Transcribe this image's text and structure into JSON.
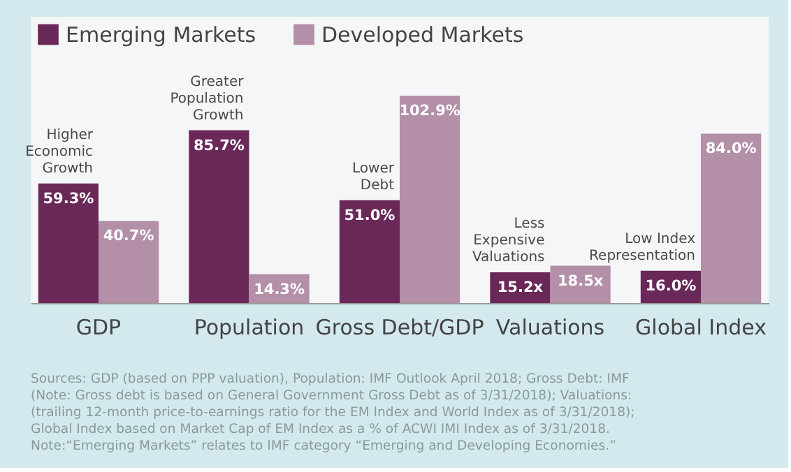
{
  "chart_data": {
    "type": "bar",
    "categories": [
      "GDP",
      "Population",
      "Gross Debt/GDP",
      "Valuations",
      "Global Index"
    ],
    "series": [
      {
        "name": "Emerging Markets",
        "color": "#6a2859",
        "values": [
          59.3,
          85.7,
          51.0,
          15.2,
          16.0
        ],
        "value_labels": [
          "59.3%",
          "85.7%",
          "51.0%",
          "15.2x",
          "16.0%"
        ]
      },
      {
        "name": "Developed Markets",
        "color": "#b38fa8",
        "values": [
          40.7,
          14.3,
          102.9,
          18.5,
          84.0
        ],
        "value_labels": [
          "40.7%",
          "14.3%",
          "102.9%",
          "18.5x",
          "84.0%"
        ]
      }
    ],
    "legend": "top left",
    "grid": false,
    "annotations": [
      "Higher\nEconomic\nGrowth",
      "Greater\nPopulation\nGrowth",
      "Lower\nDebt",
      "Less\nExpensive\nValuations",
      "Low Index\nRepresentation",
      "Sources: GDP (based on PPP valuation), Population: IMF Outlook April 2018; Gross Debt: IMF (Note: Gross debt is based on General Government Gross Debt as of 3/31/2018); Valuations: (trailing 12-month price-to-earnings ratio for the EM Index and World Index as of 3/31/2018); Global Index based on Market Cap of EM Index as a % of ACWI IMI Index as of 3/31/2018.",
      "Note:“Emerging Markets” relates to IMF category “Emerging and Developing Economies.”"
    ]
  }
}
